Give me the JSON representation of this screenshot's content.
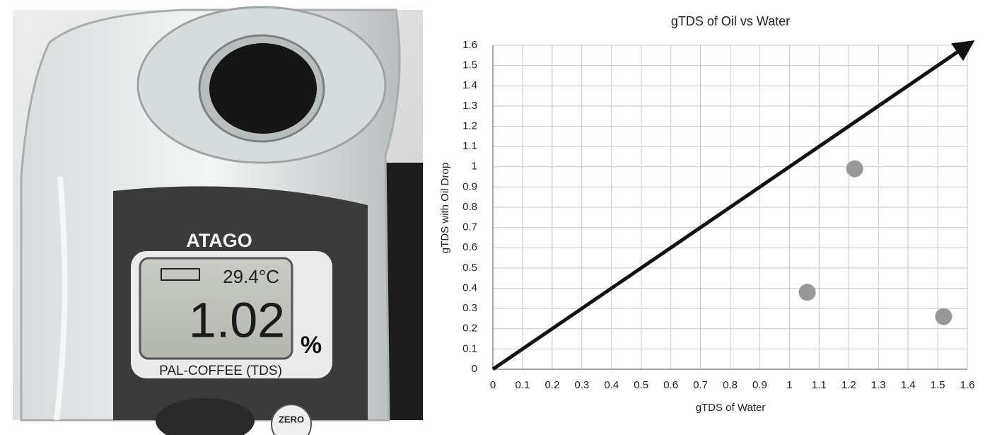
{
  "photo": {
    "brand": "ATAGO",
    "temperature": "29.4°C",
    "reading": "1.02",
    "unit": "%",
    "model": "PAL-COFFEE (TDS)",
    "button": "ZERO"
  },
  "chart_data": {
    "type": "scatter",
    "title": "gTDS of Oil vs Water",
    "x_label": "gTDS of Water",
    "y_label": "gTDS with Oil Drop",
    "x": [
      1.06,
      1.22,
      1.52
    ],
    "values": [
      0.38,
      0.99,
      0.26
    ],
    "color": "#999999",
    "xlim": [
      0,
      1.6
    ],
    "ylim": [
      0,
      1.6
    ],
    "xticks": [
      0,
      0.1,
      0.2,
      0.3,
      0.4,
      0.5,
      0.6,
      0.7,
      0.8,
      0.9,
      1,
      1.1,
      1.2,
      1.3,
      1.4,
      1.5,
      1.6
    ],
    "yticks": [
      0,
      0.1,
      0.2,
      0.3,
      0.4,
      0.5,
      0.6,
      0.7,
      0.8,
      0.9,
      1,
      1.1,
      1.2,
      1.3,
      1.4,
      1.5,
      1.6
    ],
    "grid": true
  }
}
